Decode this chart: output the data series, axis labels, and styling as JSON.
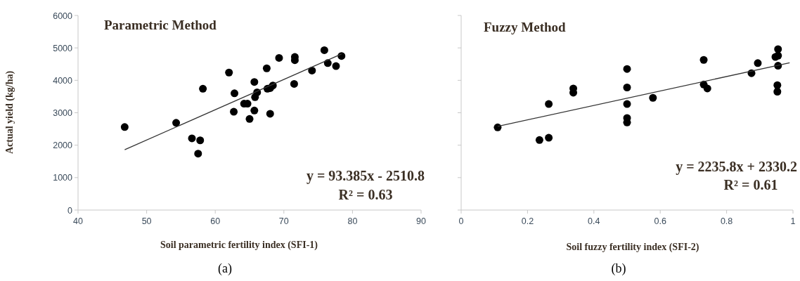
{
  "chart_data": [
    {
      "type": "scatter",
      "title": "Parametric  Method",
      "xlabel": "Soil parametric  fertility index  (SFI-1)",
      "ylabel": "Actual  yield (kg/ha)",
      "xlim": [
        40,
        90
      ],
      "xticks": [
        40,
        50,
        60,
        70,
        80,
        90
      ],
      "ylim": [
        0,
        6000
      ],
      "yticks": [
        0,
        1000,
        2000,
        3000,
        4000,
        5000,
        6000
      ],
      "series": [
        {
          "marker": "circle",
          "color": "#000000",
          "x": [
            46.8,
            54.3,
            56.6,
            57.8,
            57.5,
            58.2,
            62.0,
            62.7,
            62.8,
            64.2,
            64.7,
            65.0,
            65.7,
            65.7,
            65.8,
            66.1,
            67.5,
            67.6,
            68.0,
            68.0,
            68.4,
            69.3,
            71.6,
            71.6,
            71.5,
            74.1,
            75.9,
            76.4,
            77.6,
            78.4
          ],
          "values": [
            2560,
            2690,
            2210,
            2150,
            1740,
            3740,
            4240,
            3030,
            3600,
            3280,
            3280,
            2810,
            3950,
            3070,
            3480,
            3630,
            4370,
            3740,
            2970,
            3760,
            3840,
            4690,
            4720,
            4620,
            3890,
            4300,
            4930,
            4530,
            4440,
            4750
          ]
        },
        {
          "type": "line",
          "color": "#333333",
          "x": [
            46.8,
            78.4
          ],
          "values": [
            1860,
            4810
          ]
        }
      ],
      "annotations": [
        "y = 93.385x - 2510.8",
        "R² = 0.63",
        "(a)"
      ]
    },
    {
      "type": "scatter",
      "title": "Fuzzy  Method",
      "xlabel": "Soil fuzzy  fertility index (SFI-2)",
      "xlim": [
        0,
        1
      ],
      "xticks": [
        0,
        0.2,
        0.4,
        0.6,
        0.8,
        1
      ],
      "ylim": [
        0,
        6000
      ],
      "yticks": [
        {
          "value": 0,
          "label": null
        },
        {
          "value": 1000,
          "label": null
        },
        {
          "value": 2000,
          "label": null
        },
        {
          "value": 3000,
          "label": null
        },
        {
          "value": 4000,
          "label": null
        },
        {
          "value": 5000,
          "label": null
        },
        {
          "value": 6000,
          "label": null
        }
      ],
      "tick_labels": "x",
      "series": [
        {
          "marker": "circle",
          "color": "#000000",
          "x": [
            0.11,
            0.236,
            0.264,
            0.264,
            0.338,
            0.338,
            0.5,
            0.5,
            0.5,
            0.5,
            0.5,
            0.578,
            0.731,
            0.731,
            0.742,
            0.875,
            0.894,
            0.947,
            0.955,
            0.955,
            0.955,
            0.953,
            0.953
          ],
          "values": [
            2550,
            2160,
            2230,
            3270,
            3750,
            3620,
            4350,
            3780,
            3270,
            2840,
            2700,
            3460,
            4630,
            3870,
            3750,
            4220,
            4530,
            4720,
            4760,
            4960,
            4450,
            3850,
            3650
          ]
        },
        {
          "type": "line",
          "color": "#333333",
          "x": [
            0.11,
            0.99
          ],
          "values": [
            2580,
            4540
          ]
        }
      ],
      "annotations": [
        "y = 2235.8x + 2330.2",
        "R² = 0.61",
        "(b)"
      ]
    }
  ]
}
